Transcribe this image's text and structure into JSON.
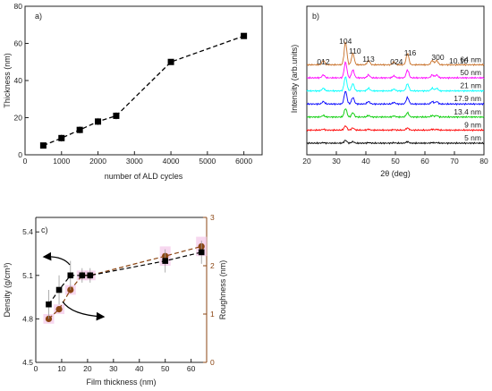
{
  "chart_data": [
    {
      "type": "line",
      "panel_label": "a)",
      "xlabel": "number of ALD cycles",
      "ylabel": "Thickness (nm)",
      "xlim": [
        0,
        6500
      ],
      "ylim": [
        0,
        80
      ],
      "xticks": [
        0,
        1000,
        2000,
        3000,
        4000,
        5000,
        6000
      ],
      "yticks": [
        0,
        20,
        40,
        60,
        80
      ],
      "line_style": "dashed",
      "marker": "square",
      "color": "#000000",
      "series": [
        {
          "x": [
            500,
            1000,
            1500,
            2000,
            2500,
            4000,
            6000
          ],
          "y": [
            5,
            9,
            13.4,
            17.9,
            21,
            50,
            64
          ],
          "yerr": [
            1.5,
            2,
            2,
            2,
            2,
            1,
            1.5
          ]
        }
      ]
    },
    {
      "type": "line",
      "panel_label": "b)",
      "xlabel": "2θ (deg)",
      "ylabel": "Intensity (arb.units)",
      "xlim": [
        20,
        80
      ],
      "xticks": [
        20,
        30,
        40,
        50,
        60,
        70,
        80
      ],
      "peak_labels": [
        "012",
        "104",
        "110",
        "113",
        "024",
        "116",
        "300",
        "10.10"
      ],
      "peak_positions": [
        25.6,
        33.1,
        35.6,
        40.9,
        49.5,
        54.1,
        62.5,
        64.0
      ],
      "series": [
        {
          "name": "5 nm",
          "color": "#000000",
          "offset": 0,
          "scale": 0.2
        },
        {
          "name": "9 nm",
          "color": "#ff0000",
          "offset": 1,
          "scale": 0.3
        },
        {
          "name": "13.4 nm",
          "color": "#00cc00",
          "offset": 2,
          "scale": 0.6
        },
        {
          "name": "17.9 nm",
          "color": "#0000ff",
          "offset": 3,
          "scale": 0.9
        },
        {
          "name": "21 nm",
          "color": "#00ffff",
          "offset": 4,
          "scale": 1.0
        },
        {
          "name": "50 nm",
          "color": "#ff00ff",
          "offset": 5,
          "scale": 1.1
        },
        {
          "name": "64 nm",
          "color": "#c87028",
          "offset": 6,
          "scale": 1.6
        }
      ]
    },
    {
      "type": "scatter",
      "panel_label": "c)",
      "xlabel": "Film thickness (nm)",
      "ylabel_left": "Density (g/cm³)",
      "ylabel_right": "Roughness (nm)",
      "xlim": [
        0,
        66
      ],
      "ylim_left": [
        4.5,
        5.5
      ],
      "ylim_right": [
        0,
        3
      ],
      "xticks": [
        0,
        10,
        20,
        30,
        40,
        50,
        60
      ],
      "yticks_left": [
        4.5,
        4.8,
        5.1,
        5.4
      ],
      "yticks_right": [
        0,
        1,
        2,
        3
      ],
      "series": [
        {
          "name": "Density",
          "axis": "left",
          "marker": "square",
          "color": "#000000",
          "x": [
            5,
            9,
            13.4,
            17.9,
            21,
            50,
            64
          ],
          "y": [
            4.9,
            5.0,
            5.1,
            5.1,
            5.1,
            5.2,
            5.26
          ],
          "yerr": [
            0.1,
            0.1,
            0.1,
            0.05,
            0.05,
            0.08,
            0.08
          ]
        },
        {
          "name": "Roughness",
          "axis": "right",
          "marker": "circle",
          "color": "#8b4513",
          "x": [
            5,
            9,
            13.4,
            17.9,
            21,
            50,
            64
          ],
          "y": [
            0.9,
            1.1,
            1.5,
            1.8,
            1.8,
            2.2,
            2.4
          ],
          "yerr": [
            0.1,
            0.1,
            0.1,
            0.1,
            0.1,
            0.2,
            0.2
          ]
        }
      ]
    }
  ]
}
